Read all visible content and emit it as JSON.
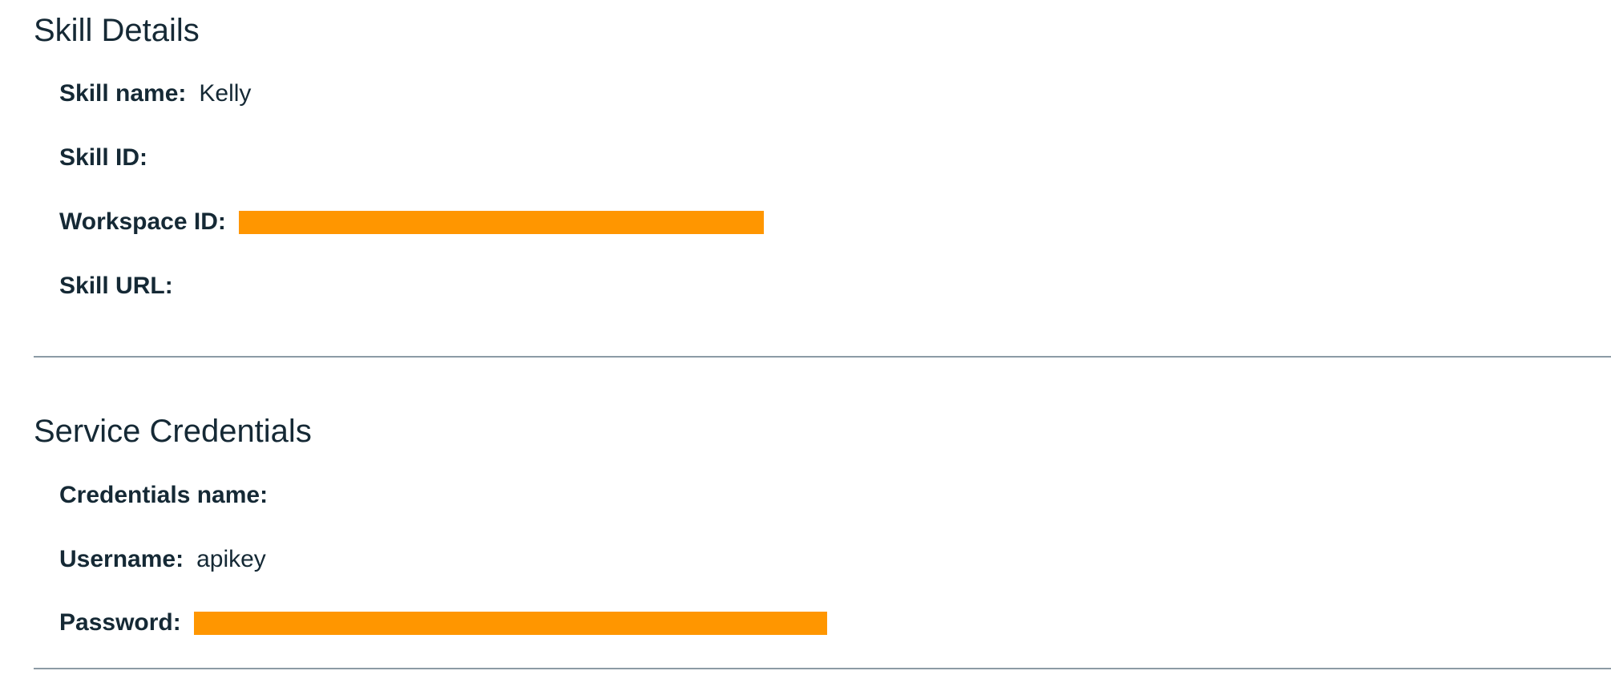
{
  "skill_details": {
    "title": "Skill Details",
    "skill_name_label": "Skill name:",
    "skill_name_value": "Kelly",
    "skill_id_label": "Skill ID:",
    "workspace_id_label": "Workspace ID:",
    "skill_url_label": "Skill URL:"
  },
  "service_credentials": {
    "title": "Service Credentials",
    "credentials_name_label": "Credentials name:",
    "username_label": "Username:",
    "username_value": "apikey",
    "password_label": "Password:"
  },
  "colors": {
    "redaction": "#ff9600",
    "text": "#152935",
    "divider": "#8c9ba5"
  }
}
